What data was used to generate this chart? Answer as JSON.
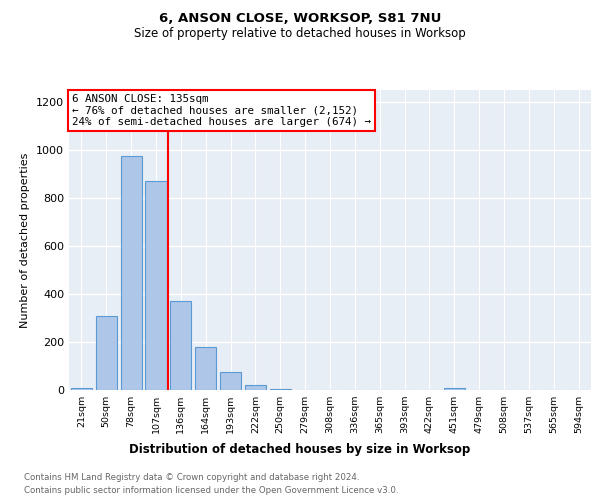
{
  "title1": "6, ANSON CLOSE, WORKSOP, S81 7NU",
  "title2": "Size of property relative to detached houses in Worksop",
  "xlabel": "Distribution of detached houses by size in Worksop",
  "ylabel": "Number of detached properties",
  "categories": [
    "21sqm",
    "50sqm",
    "78sqm",
    "107sqm",
    "136sqm",
    "164sqm",
    "193sqm",
    "222sqm",
    "250sqm",
    "279sqm",
    "308sqm",
    "336sqm",
    "365sqm",
    "393sqm",
    "422sqm",
    "451sqm",
    "479sqm",
    "508sqm",
    "537sqm",
    "565sqm",
    "594sqm"
  ],
  "values": [
    10,
    310,
    975,
    870,
    370,
    180,
    75,
    22,
    5,
    2,
    1,
    1,
    1,
    0,
    0,
    10,
    0,
    0,
    0,
    0,
    0
  ],
  "bar_color": "#aec6e8",
  "bar_edge_color": "#5b9bd5",
  "red_line_index": 4,
  "red_line_label": "6 ANSON CLOSE: 135sqm",
  "annotation_line2": "← 76% of detached houses are smaller (2,152)",
  "annotation_line3": "24% of semi-detached houses are larger (674) →",
  "ylim": [
    0,
    1250
  ],
  "yticks": [
    0,
    200,
    400,
    600,
    800,
    1000,
    1200
  ],
  "bg_color": "#e8eef5",
  "grid_color": "#ffffff",
  "footer_line1": "Contains HM Land Registry data © Crown copyright and database right 2024.",
  "footer_line2": "Contains public sector information licensed under the Open Government Licence v3.0."
}
